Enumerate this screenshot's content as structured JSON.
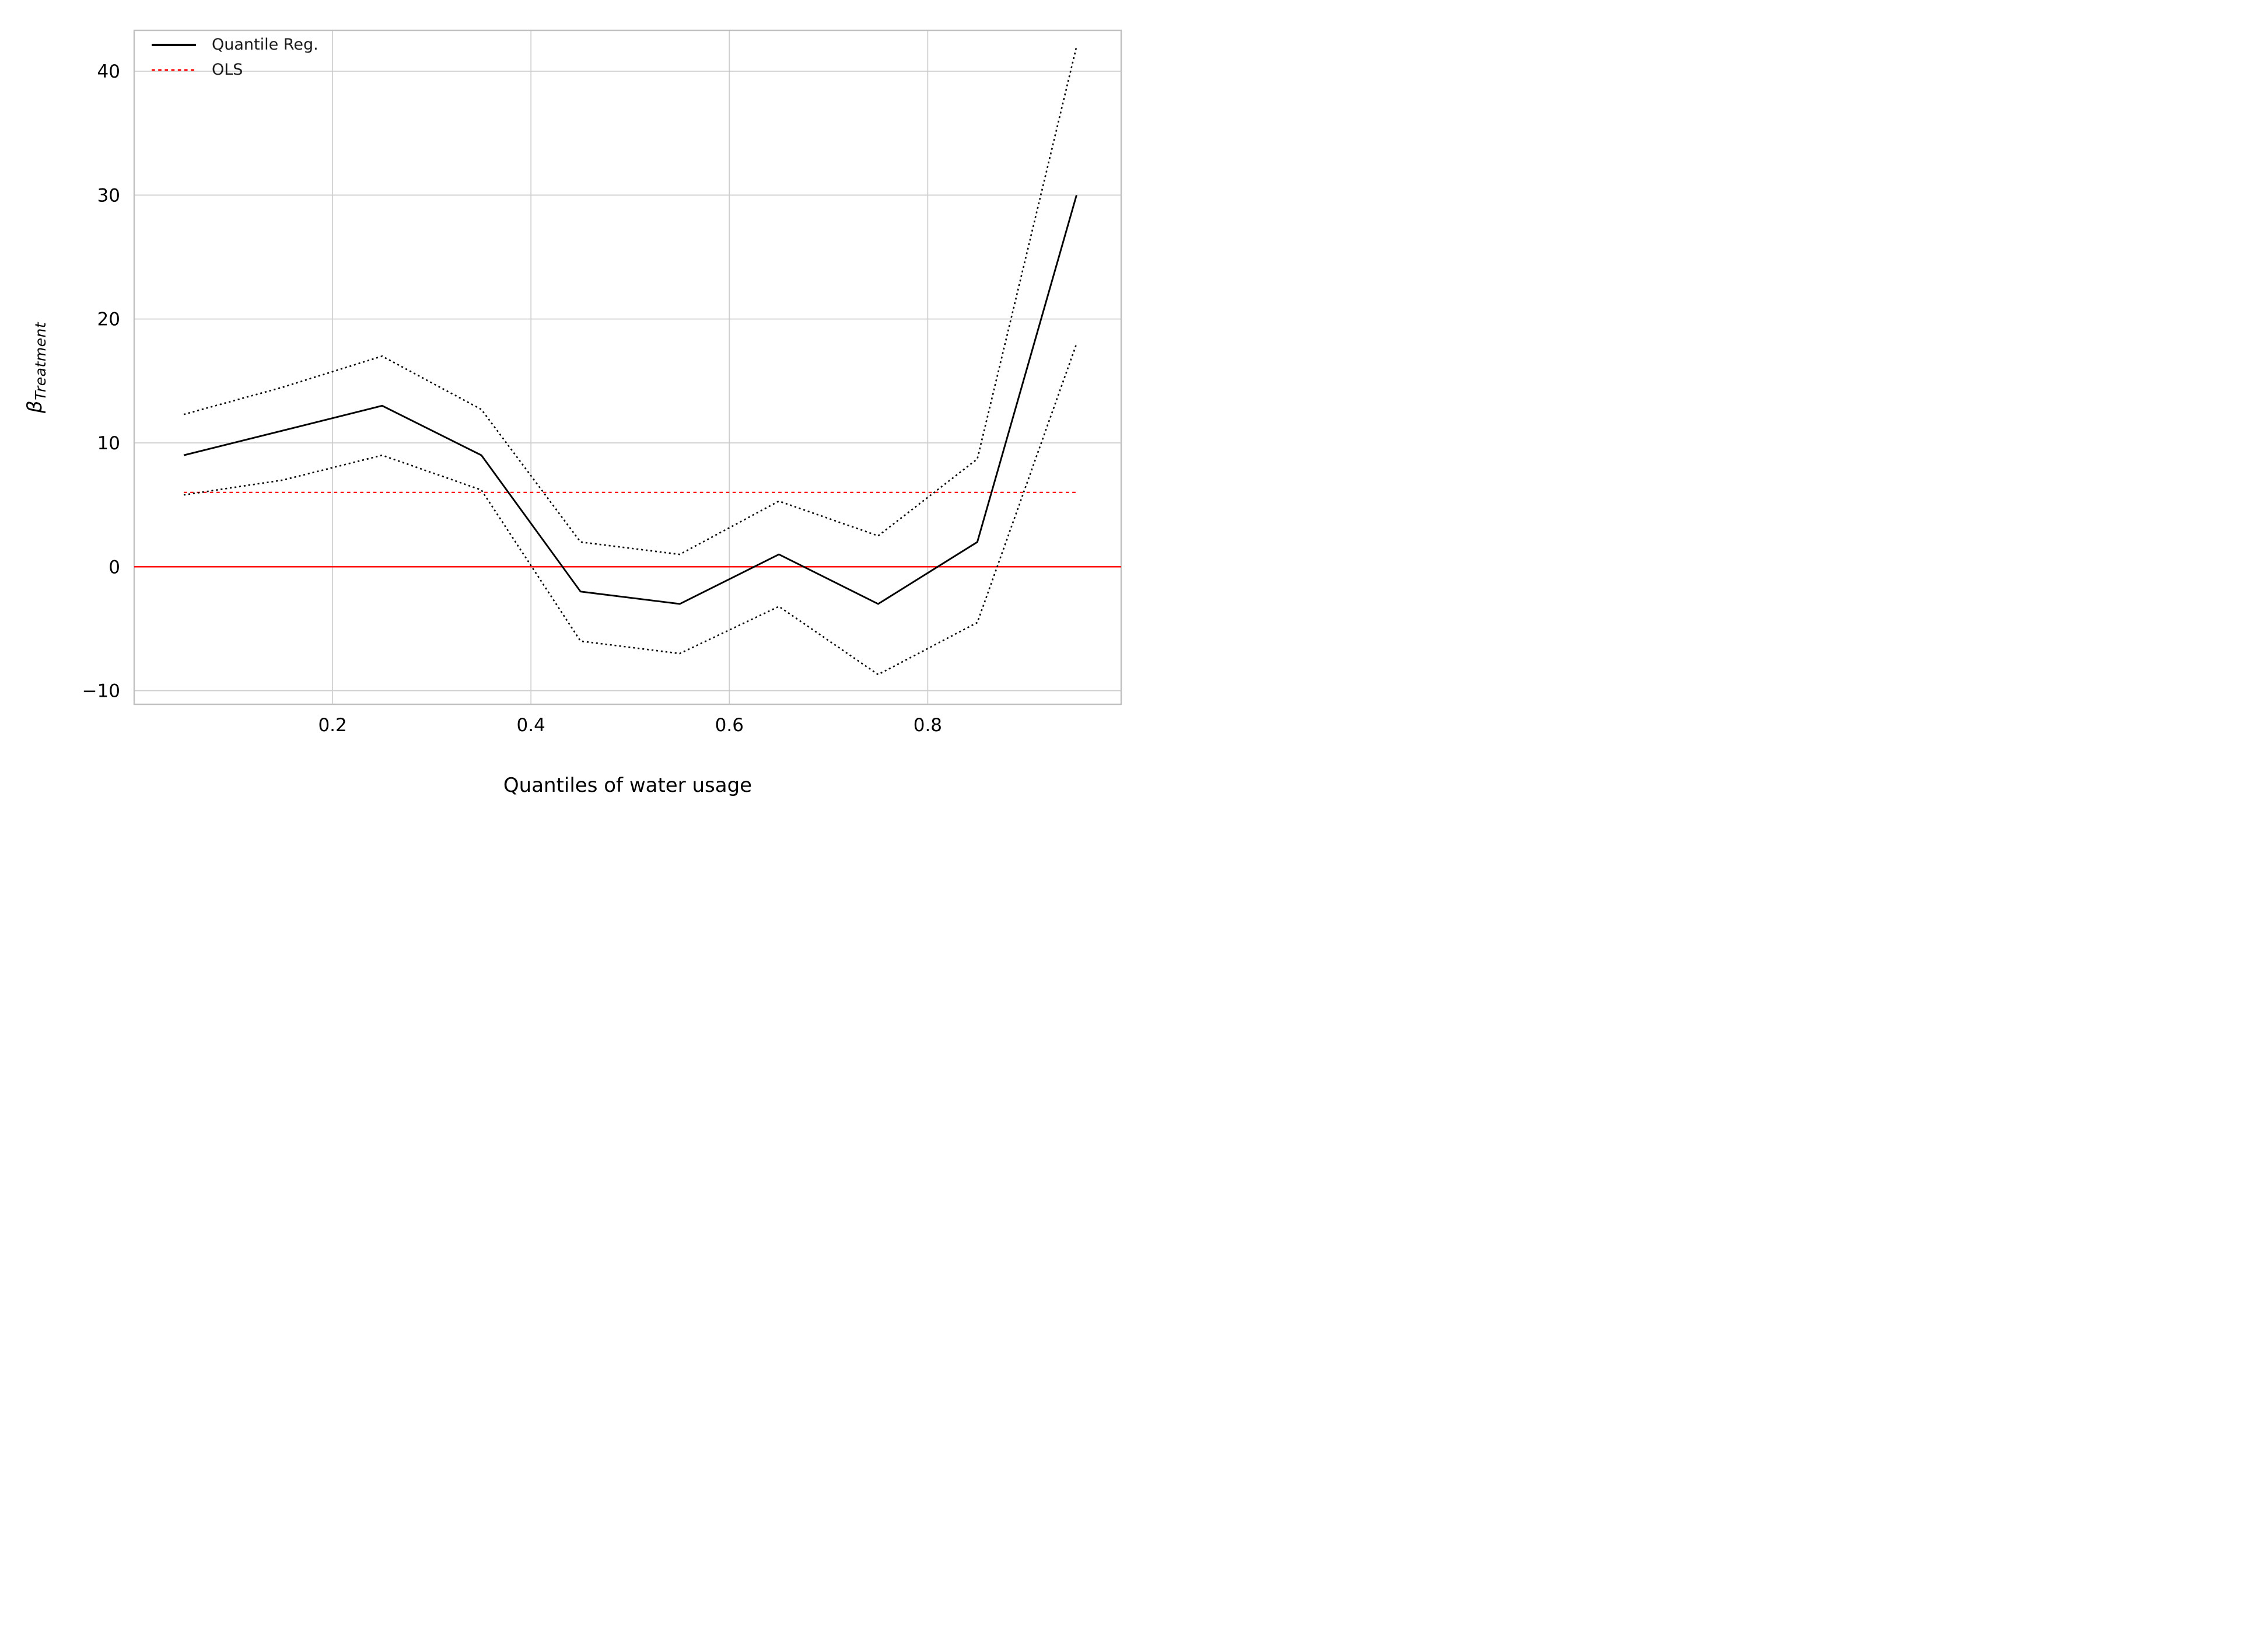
{
  "chart_data": {
    "type": "line",
    "title": "",
    "xlabel": "Quantiles of water usage",
    "ylabel_symbol": "β",
    "ylabel_subscript": "Treatment",
    "x": [
      0.05,
      0.15,
      0.25,
      0.35,
      0.45,
      0.55,
      0.65,
      0.75,
      0.85,
      0.95
    ],
    "series": [
      {
        "name": "Quantile Reg.",
        "role": "estimate",
        "color": "#000000",
        "linestyle": "solid",
        "values": [
          9,
          11,
          13,
          9,
          -2,
          -3,
          1,
          -3,
          2,
          30
        ]
      },
      {
        "name": "Quantile Reg. upper CI",
        "role": "ci-upper",
        "color": "#000000",
        "linestyle": "dotted",
        "values": [
          12.3,
          14.5,
          17,
          12.7,
          2,
          1,
          5.3,
          2.5,
          8.7,
          42
        ]
      },
      {
        "name": "Quantile Reg. lower CI",
        "role": "ci-lower",
        "color": "#000000",
        "linestyle": "dotted",
        "values": [
          5.8,
          7,
          9,
          6.2,
          -6,
          -7,
          -3.2,
          -8.7,
          -4.5,
          18
        ]
      },
      {
        "name": "OLS",
        "role": "ols",
        "color": "#ff0000",
        "linestyle": "dotted",
        "values": [
          6,
          6,
          6,
          6,
          6,
          6,
          6,
          6,
          6,
          6
        ]
      }
    ],
    "reference_lines": [
      {
        "name": "zero-line",
        "axis": "y",
        "value": 0,
        "color": "#ff0000",
        "linestyle": "solid"
      }
    ],
    "xticks": {
      "values": [
        0.2,
        0.4,
        0.6,
        0.8
      ],
      "labels": [
        "0.2",
        "0.4",
        "0.6",
        "0.8"
      ]
    },
    "yticks": {
      "values": [
        -10,
        0,
        10,
        20,
        30,
        40
      ],
      "labels": [
        "−10",
        "0",
        "10",
        "20",
        "30",
        "40"
      ]
    },
    "xlim": [
      0.0,
      0.995
    ],
    "ylim": [
      -11.1,
      43.3
    ],
    "grid": true,
    "legend": {
      "position": "upper left",
      "entries": [
        {
          "label": "Quantile Reg.",
          "linestyle": "solid",
          "color": "#000000"
        },
        {
          "label": "OLS",
          "linestyle": "dotted",
          "color": "#ff0000"
        }
      ]
    },
    "colors": {
      "background": "#ffffff",
      "grid": "#cdcdcd",
      "spine": "#c0c0c0",
      "tick_label": "#000000"
    }
  }
}
